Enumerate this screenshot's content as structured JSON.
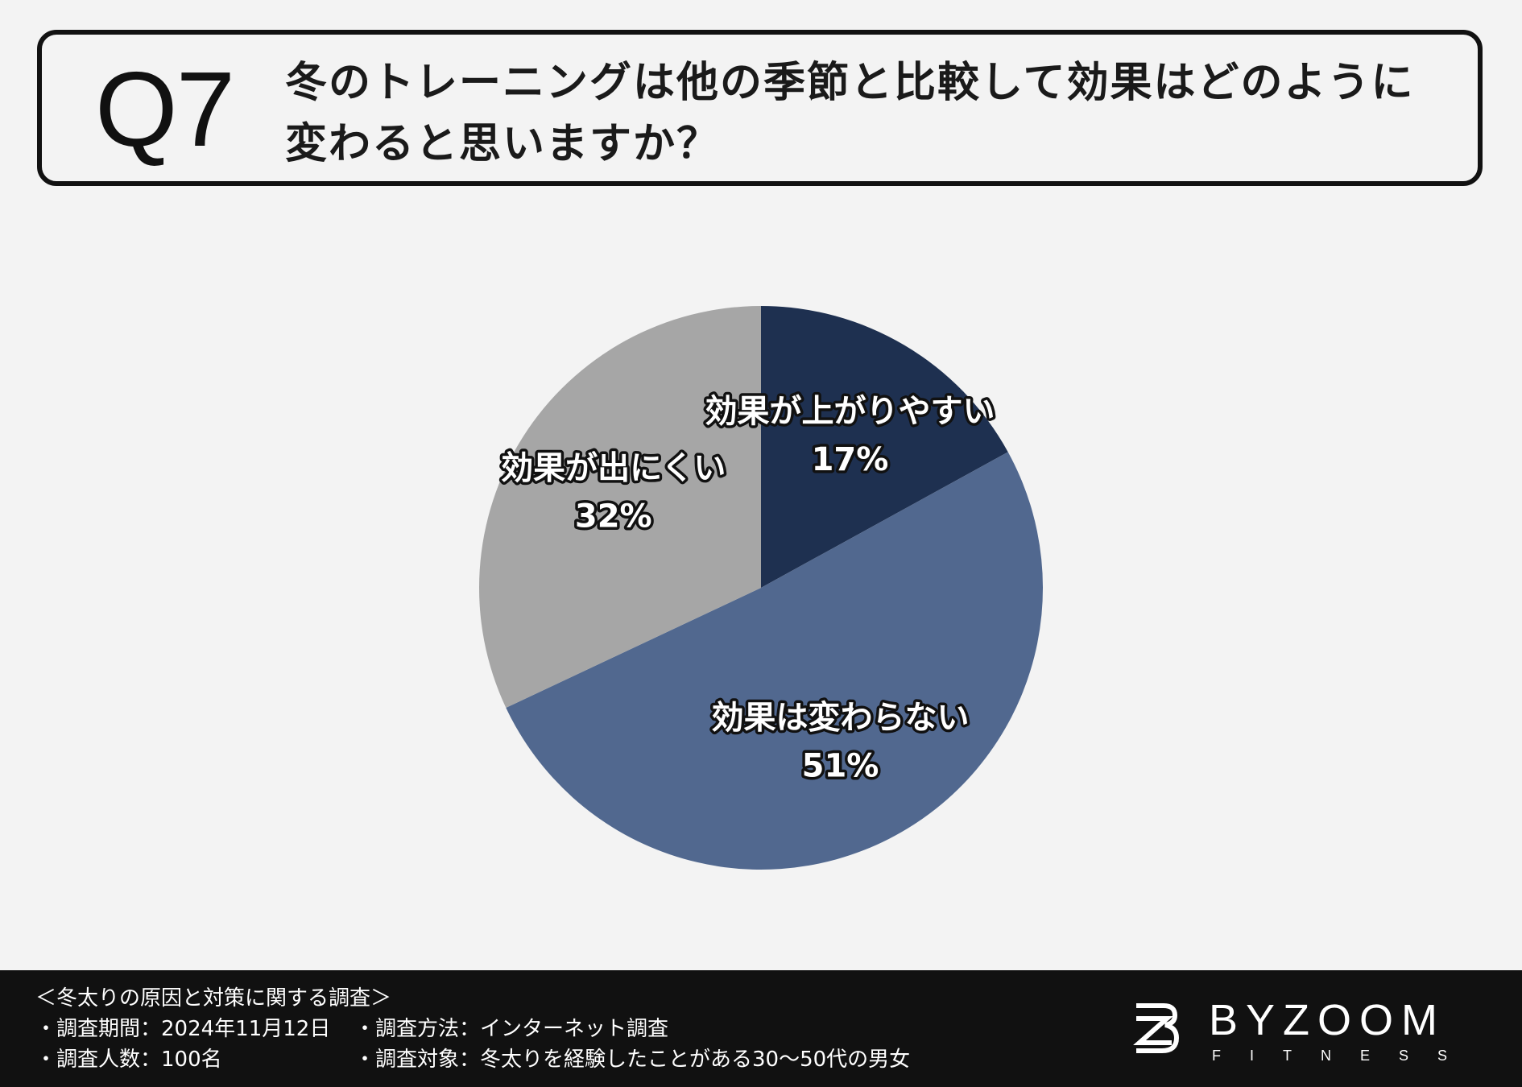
{
  "question": {
    "number": "Q7",
    "text": "冬のトレーニングは他の季節と比較して効果はどのように変わると思いますか？"
  },
  "chart_data": {
    "type": "pie",
    "slices": [
      {
        "label": "効果が上がりやすい",
        "value": 17,
        "value_label": "17%",
        "color": "#1e3050"
      },
      {
        "label": "効果は変わらない",
        "value": 51,
        "value_label": "51%",
        "color": "#51688f"
      },
      {
        "label": "効果が出にくい",
        "value": 32,
        "value_label": "32%",
        "color": "#a6a6a6"
      }
    ],
    "start": "12 o'clock",
    "direction": "clockwise",
    "legend": "none",
    "label_style": "white text with dark outline, inside slices"
  },
  "footer": {
    "survey_title": "＜冬太りの原因と対策に関する調査＞",
    "period": "・調査期間：2024年11月12日",
    "method": "・調査方法：インターネット調査",
    "count": "・調査人数：100名",
    "target": "・調査対象：冬太りを経験したことがある30〜50代の男女",
    "logo_name": "BYZOOM",
    "logo_sub": "FITNESS"
  },
  "colors": {
    "background": "#f3f3f3",
    "footer_background": "#111111",
    "box_border": "#111111"
  },
  "icons": {
    "logo_mark": "bz-monogram-logo-icon"
  }
}
